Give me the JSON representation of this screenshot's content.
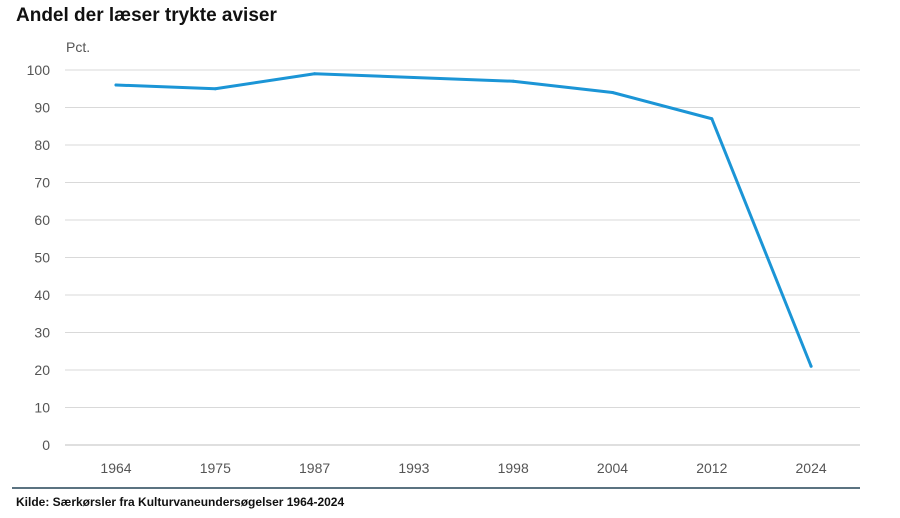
{
  "chart_data": {
    "type": "line",
    "title": "Andel der læser trykte aviser",
    "ylabel": "Pct.",
    "xlabel": "",
    "categories": [
      "1964",
      "1975",
      "1987",
      "1993",
      "1998",
      "2004",
      "2012",
      "2024"
    ],
    "series": [
      {
        "name": "Andel der læser trykte aviser",
        "values": [
          96,
          95,
          99,
          98,
          97,
          94,
          87,
          21
        ]
      }
    ],
    "ylim": [
      0,
      100
    ],
    "yticks": [
      0,
      10,
      20,
      30,
      40,
      50,
      60,
      70,
      80,
      90,
      100
    ],
    "grid": true,
    "legend": "none",
    "source": "Kilde: Særkørsler fra Kulturvaneundersøgelser 1964-2024"
  },
  "colors": {
    "line": "#1b95d6",
    "grid": "#d9d9d9",
    "axis": "#bfbfbf",
    "rule": "#5b7381"
  }
}
